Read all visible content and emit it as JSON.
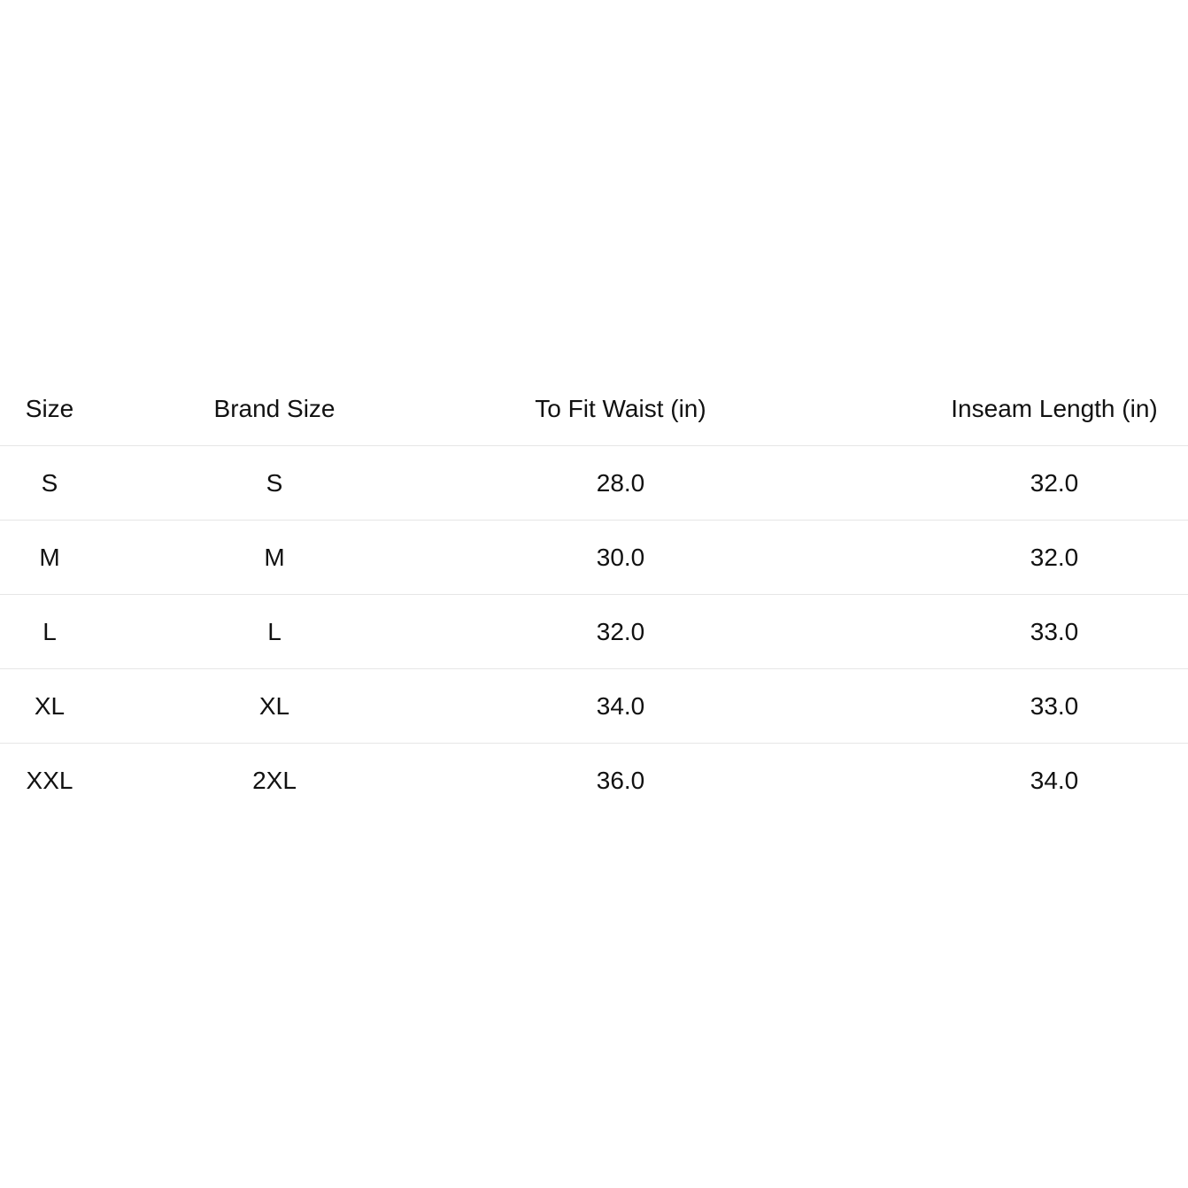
{
  "table": {
    "headers": [
      "Size",
      "Brand Size",
      "To Fit Waist (in)",
      "Inseam Length (in)"
    ],
    "rows": [
      [
        "S",
        "S",
        "28.0",
        "32.0"
      ],
      [
        "M",
        "M",
        "30.0",
        "32.0"
      ],
      [
        "L",
        "L",
        "32.0",
        "33.0"
      ],
      [
        "XL",
        "XL",
        "34.0",
        "33.0"
      ],
      [
        "XXL",
        "2XL",
        "36.0",
        "34.0"
      ]
    ]
  }
}
